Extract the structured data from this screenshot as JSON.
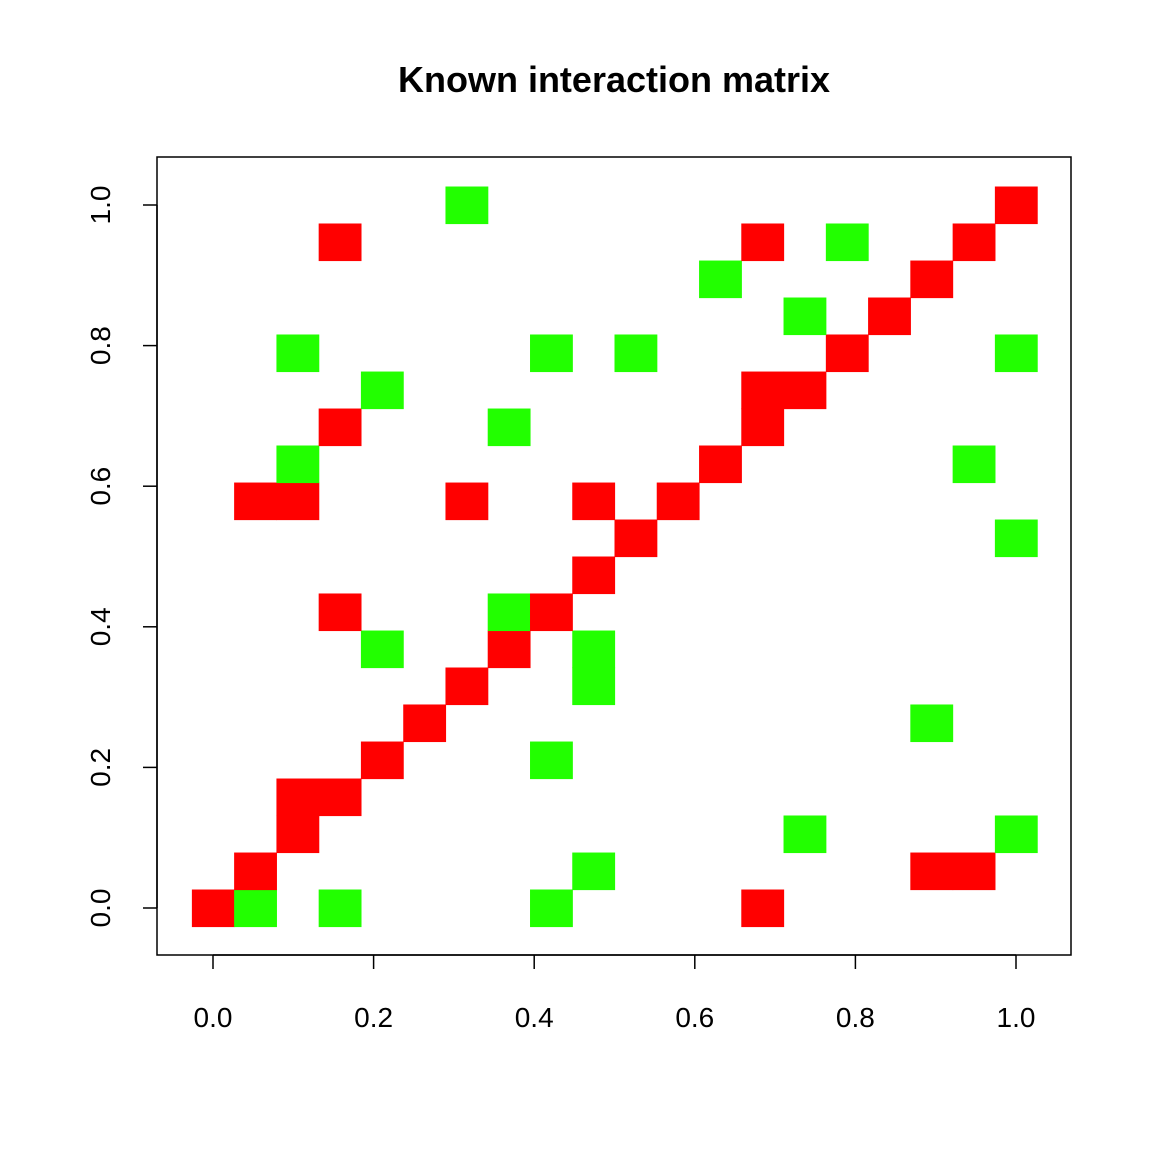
{
  "chart_data": {
    "type": "heatmap",
    "title": "Known interaction matrix",
    "xlabel": "",
    "ylabel": "",
    "xlim": [
      -0.0263,
      1.0263
    ],
    "ylim": [
      -0.0263,
      1.0263
    ],
    "x_ticks": [
      0.0,
      0.2,
      0.4,
      0.6,
      0.8,
      1.0
    ],
    "y_ticks": [
      0.0,
      0.2,
      0.4,
      0.6,
      0.8,
      1.0
    ],
    "x_tick_labels": [
      "0.0",
      "0.2",
      "0.4",
      "0.6",
      "0.8",
      "1.0"
    ],
    "y_tick_labels": [
      "0.0",
      "0.2",
      "0.4",
      "0.6",
      "0.8",
      "1.0"
    ],
    "grid": false,
    "legend": "none",
    "cell_width": 0.0526,
    "cell_height": 0.0526,
    "colors": {
      "red": "#ff0000",
      "green": "#22ff00"
    },
    "cells": [
      {
        "x": 0.0,
        "y": 0.0,
        "color": "red"
      },
      {
        "x": 0.0526,
        "y": 0.0,
        "color": "green"
      },
      {
        "x": 0.1579,
        "y": 0.0,
        "color": "green"
      },
      {
        "x": 0.4211,
        "y": 0.0,
        "color": "green"
      },
      {
        "x": 0.6842,
        "y": 0.0,
        "color": "red"
      },
      {
        "x": 0.0526,
        "y": 0.0526,
        "color": "red"
      },
      {
        "x": 0.4737,
        "y": 0.0526,
        "color": "green"
      },
      {
        "x": 0.8947,
        "y": 0.0526,
        "color": "red"
      },
      {
        "x": 0.9474,
        "y": 0.0526,
        "color": "red"
      },
      {
        "x": 0.1053,
        "y": 0.1053,
        "color": "red"
      },
      {
        "x": 0.7368,
        "y": 0.1053,
        "color": "green"
      },
      {
        "x": 1.0,
        "y": 0.1053,
        "color": "green"
      },
      {
        "x": 0.1053,
        "y": 0.1579,
        "color": "red"
      },
      {
        "x": 0.1579,
        "y": 0.1579,
        "color": "red"
      },
      {
        "x": 0.2105,
        "y": 0.2105,
        "color": "red"
      },
      {
        "x": 0.4211,
        "y": 0.2105,
        "color": "green"
      },
      {
        "x": 0.2632,
        "y": 0.2632,
        "color": "red"
      },
      {
        "x": 0.8947,
        "y": 0.2632,
        "color": "green"
      },
      {
        "x": 0.3158,
        "y": 0.3158,
        "color": "red"
      },
      {
        "x": 0.4737,
        "y": 0.3158,
        "color": "green"
      },
      {
        "x": 0.2105,
        "y": 0.3684,
        "color": "green"
      },
      {
        "x": 0.3684,
        "y": 0.3684,
        "color": "red"
      },
      {
        "x": 0.4737,
        "y": 0.3684,
        "color": "green"
      },
      {
        "x": 0.1579,
        "y": 0.4211,
        "color": "red"
      },
      {
        "x": 0.3684,
        "y": 0.4211,
        "color": "green"
      },
      {
        "x": 0.4211,
        "y": 0.4211,
        "color": "red"
      },
      {
        "x": 0.4737,
        "y": 0.4737,
        "color": "red"
      },
      {
        "x": 0.5263,
        "y": 0.5263,
        "color": "red"
      },
      {
        "x": 1.0,
        "y": 0.5263,
        "color": "green"
      },
      {
        "x": 0.0526,
        "y": 0.5789,
        "color": "red"
      },
      {
        "x": 0.1053,
        "y": 0.5789,
        "color": "red"
      },
      {
        "x": 0.3158,
        "y": 0.5789,
        "color": "red"
      },
      {
        "x": 0.4737,
        "y": 0.5789,
        "color": "red"
      },
      {
        "x": 0.5789,
        "y": 0.5789,
        "color": "red"
      },
      {
        "x": 0.1053,
        "y": 0.6316,
        "color": "green"
      },
      {
        "x": 0.6316,
        "y": 0.6316,
        "color": "red"
      },
      {
        "x": 0.9474,
        "y": 0.6316,
        "color": "green"
      },
      {
        "x": 0.1579,
        "y": 0.6842,
        "color": "red"
      },
      {
        "x": 0.3684,
        "y": 0.6842,
        "color": "green"
      },
      {
        "x": 0.6842,
        "y": 0.6842,
        "color": "red"
      },
      {
        "x": 0.2105,
        "y": 0.7368,
        "color": "green"
      },
      {
        "x": 0.6842,
        "y": 0.7368,
        "color": "red"
      },
      {
        "x": 0.7368,
        "y": 0.7368,
        "color": "red"
      },
      {
        "x": 0.1053,
        "y": 0.7895,
        "color": "green"
      },
      {
        "x": 0.4211,
        "y": 0.7895,
        "color": "green"
      },
      {
        "x": 0.5263,
        "y": 0.7895,
        "color": "green"
      },
      {
        "x": 0.7895,
        "y": 0.7895,
        "color": "red"
      },
      {
        "x": 1.0,
        "y": 0.7895,
        "color": "green"
      },
      {
        "x": 0.7368,
        "y": 0.8421,
        "color": "green"
      },
      {
        "x": 0.8421,
        "y": 0.8421,
        "color": "red"
      },
      {
        "x": 0.6316,
        "y": 0.8947,
        "color": "green"
      },
      {
        "x": 0.8947,
        "y": 0.8947,
        "color": "red"
      },
      {
        "x": 0.1579,
        "y": 0.9474,
        "color": "red"
      },
      {
        "x": 0.6842,
        "y": 0.9474,
        "color": "red"
      },
      {
        "x": 0.7895,
        "y": 0.9474,
        "color": "green"
      },
      {
        "x": 0.9474,
        "y": 0.9474,
        "color": "red"
      },
      {
        "x": 0.3158,
        "y": 1.0,
        "color": "green"
      },
      {
        "x": 1.0,
        "y": 1.0,
        "color": "red"
      }
    ]
  }
}
